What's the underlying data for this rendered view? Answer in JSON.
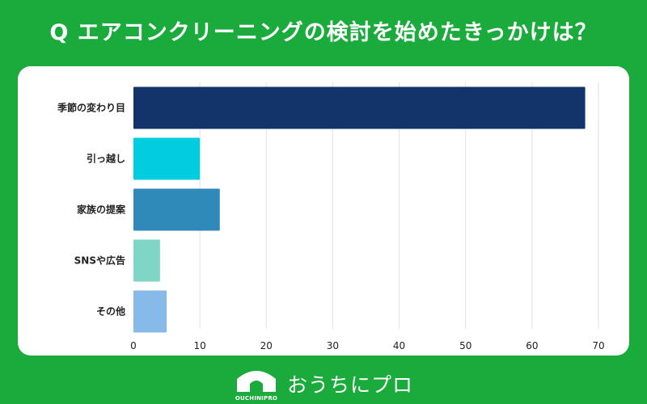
{
  "title": "Q エアコンクリーニングの検討を始めたきっかけは？",
  "chart_data": {
    "type": "bar",
    "orientation": "horizontal",
    "title": "Q エアコンクリーニングの検討を始めたきっかけは？",
    "categories": [
      "季節の変わり目",
      "引っ越し",
      "家族の提案",
      "SNSや広告",
      "その他"
    ],
    "values": [
      68,
      10,
      13,
      4,
      5
    ],
    "colors": [
      "#13346a",
      "#00cde0",
      "#2f8ab9",
      "#7fd6c6",
      "#86bbe9"
    ],
    "xlim": [
      0,
      70
    ],
    "xticks": [
      0,
      10,
      20,
      30,
      40,
      50,
      60,
      70
    ],
    "grid": true,
    "xlabel": "",
    "ylabel": ""
  },
  "footer": {
    "brand": "おうちにプロ",
    "logo_sub": "OUCHINIPRO",
    "logo_icon": "house-icon"
  }
}
